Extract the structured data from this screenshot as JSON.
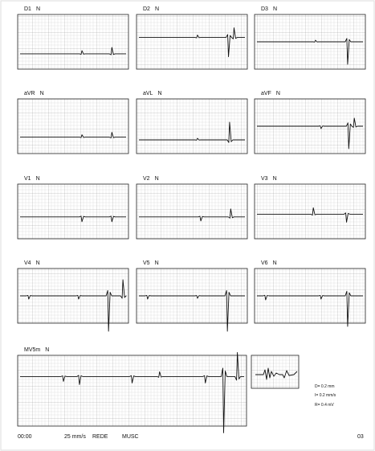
{
  "leads": [
    {
      "name": "D1",
      "mode": "N"
    },
    {
      "name": "D2",
      "mode": "N"
    },
    {
      "name": "D3",
      "mode": "N"
    },
    {
      "name": "aVR",
      "mode": "N"
    },
    {
      "name": "aVL",
      "mode": "N"
    },
    {
      "name": "aVF",
      "mode": "N"
    },
    {
      "name": "V1",
      "mode": "N"
    },
    {
      "name": "V2",
      "mode": "N"
    },
    {
      "name": "V3",
      "mode": "N"
    },
    {
      "name": "V4",
      "mode": "N"
    },
    {
      "name": "V5",
      "mode": "N"
    },
    {
      "name": "V6",
      "mode": "N"
    },
    {
      "name": "MV5m",
      "mode": "N"
    }
  ],
  "calibration": [
    "D= 0.2 mm",
    "I= 0.2 mm/s",
    "R= 0.4 mV"
  ],
  "footer": {
    "time": "00:00",
    "speed": "25 mm/s",
    "filter": "REDE",
    "mode": "MUSC",
    "page": "03"
  }
}
